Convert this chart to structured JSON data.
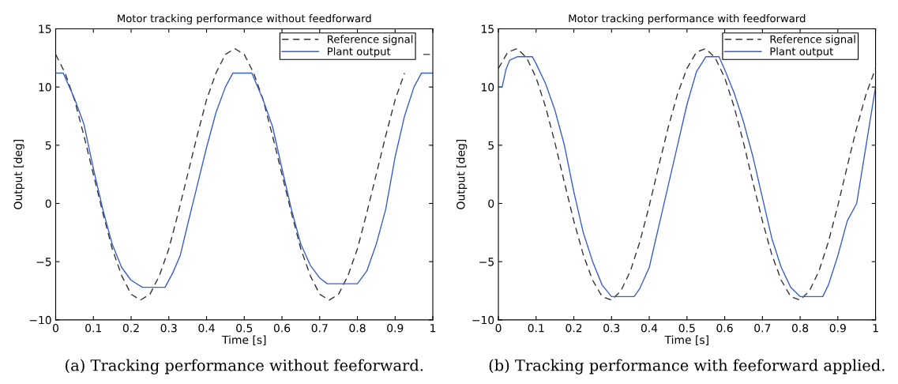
{
  "chart_data": [
    {
      "type": "line",
      "title": "Motor tracking performance without feedforward",
      "xlabel": "Time [s]",
      "ylabel": "Output [deg]",
      "xlim": [
        0,
        1
      ],
      "ylim": [
        -10,
        15
      ],
      "xticks": [
        0,
        0.1,
        0.2,
        0.3,
        0.4,
        0.5,
        0.6,
        0.7,
        0.8,
        0.9,
        1
      ],
      "yticks": [
        -10,
        -5,
        0,
        5,
        10,
        15
      ],
      "grid": false,
      "legend": "top right",
      "annotations": [
        "(a) Tracking performance without feeforward."
      ],
      "series": [
        {
          "name": "Reference signal",
          "color": "#333333",
          "line_style": "dashed",
          "x": [
            0,
            0.025,
            0.05,
            0.075,
            0.1,
            0.125,
            0.15,
            0.175,
            0.2,
            0.225,
            0.25,
            0.275,
            0.3,
            0.325,
            0.35,
            0.375,
            0.4,
            0.425,
            0.45,
            0.475,
            0.5,
            0.525,
            0.55,
            0.575,
            0.6,
            0.625,
            0.65,
            0.675,
            0.7,
            0.725,
            0.75,
            0.775,
            0.8,
            0.825,
            0.85,
            0.875,
            0.9,
            0.925,
            0.95,
            0.975,
            1
          ],
          "values": [
            12.8,
            11.2,
            8.9,
            5.8,
            2.5,
            -0.8,
            -3.9,
            -6.2,
            -7.8,
            -8.3,
            -7.8,
            -6.2,
            -3.9,
            -0.8,
            2.5,
            5.8,
            8.9,
            11.2,
            12.8,
            13.3,
            12.8,
            11.2,
            8.9,
            5.8,
            2.5,
            -0.8,
            -3.9,
            -6.2,
            -7.8,
            -8.3,
            -7.8,
            -6.2,
            -3.9,
            -0.8,
            2.5,
            5.8,
            8.9,
            11.2,
            null,
            12.8,
            12.8
          ]
        },
        {
          "name": "Plant output",
          "color": "#3b5fc8",
          "line_style": "solid",
          "x": [
            0,
            0.02,
            0.05,
            0.075,
            0.1,
            0.125,
            0.15,
            0.175,
            0.2,
            0.23,
            0.29,
            0.31,
            0.33,
            0.35,
            0.375,
            0.4,
            0.425,
            0.45,
            0.47,
            0.52,
            0.55,
            0.575,
            0.6,
            0.625,
            0.65,
            0.675,
            0.7,
            0.72,
            0.8,
            0.825,
            0.85,
            0.875,
            0.9,
            0.925,
            0.95,
            0.97,
            1
          ],
          "values": [
            11.2,
            11.2,
            9.0,
            6.8,
            3.0,
            -0.5,
            -3.5,
            -5.5,
            -6.6,
            -7.2,
            -7.2,
            -6.0,
            -4.5,
            -1.8,
            1.5,
            4.8,
            7.8,
            10.0,
            11.2,
            11.2,
            8.9,
            6.6,
            3.0,
            -0.5,
            -3.5,
            -5.3,
            -6.4,
            -6.9,
            -6.9,
            -5.8,
            -3.5,
            -0.5,
            4.0,
            7.5,
            10.0,
            11.2,
            11.2
          ]
        }
      ]
    },
    {
      "type": "line",
      "title": "Motor tracking performance with feedforward",
      "xlabel": "Time [s]",
      "ylabel": "Output [deg]",
      "xlim": [
        0,
        1
      ],
      "ylim": [
        -10,
        15
      ],
      "xticks": [
        0,
        0.1,
        0.2,
        0.3,
        0.4,
        0.5,
        0.6,
        0.7,
        0.8,
        0.9,
        1
      ],
      "yticks": [
        -10,
        -5,
        0,
        5,
        10,
        15
      ],
      "grid": false,
      "legend": "top right",
      "annotations": [
        "(b) Tracking performance with feeforward applied."
      ],
      "series": [
        {
          "name": "Reference signal",
          "color": "#333333",
          "line_style": "dashed",
          "x": [
            0,
            0.025,
            0.05,
            0.075,
            0.1,
            0.125,
            0.15,
            0.175,
            0.2,
            0.225,
            0.25,
            0.275,
            0.3,
            0.325,
            0.35,
            0.375,
            0.4,
            0.425,
            0.45,
            0.475,
            0.5,
            0.525,
            0.55,
            0.575,
            0.6,
            0.625,
            0.65,
            0.675,
            0.7,
            0.725,
            0.75,
            0.775,
            0.8,
            0.825,
            0.85,
            0.875,
            0.9,
            0.925,
            0.95,
            0.975,
            1
          ],
          "values": [
            11.6,
            13.0,
            13.3,
            12.5,
            10.8,
            8.3,
            5.2,
            1.8,
            -1.5,
            -4.4,
            -6.6,
            -8.0,
            -8.3,
            -7.5,
            -5.8,
            -3.3,
            -0.2,
            3.2,
            6.5,
            9.4,
            11.6,
            13.0,
            13.3,
            12.5,
            10.8,
            8.3,
            5.2,
            1.8,
            -1.5,
            -4.4,
            -6.6,
            -8.0,
            -8.3,
            -7.5,
            -5.8,
            -3.3,
            -0.2,
            3.2,
            6.5,
            9.4,
            11.6
          ]
        },
        {
          "name": "Plant output",
          "color": "#3b5fc8",
          "line_style": "solid",
          "x": [
            0,
            0.01,
            0.02,
            0.03,
            0.05,
            0.09,
            0.1,
            0.125,
            0.15,
            0.175,
            0.2,
            0.225,
            0.25,
            0.275,
            0.3,
            0.36,
            0.375,
            0.4,
            0.425,
            0.45,
            0.475,
            0.5,
            0.525,
            0.55,
            0.585,
            0.6,
            0.625,
            0.65,
            0.675,
            0.7,
            0.725,
            0.75,
            0.775,
            0.8,
            0.86,
            0.875,
            0.9,
            0.925,
            0.95,
            0.975,
            1
          ],
          "values": [
            10.0,
            10.0,
            11.5,
            12.3,
            12.6,
            12.6,
            12.0,
            10.3,
            8.0,
            5.0,
            1.0,
            -2.5,
            -5.0,
            -7.0,
            -8.0,
            -8.0,
            -7.3,
            -5.5,
            -2.0,
            1.5,
            5.0,
            8.5,
            11.3,
            12.6,
            12.6,
            11.5,
            9.5,
            7.0,
            4.0,
            0.5,
            -3.0,
            -5.5,
            -7.2,
            -8.0,
            -8.0,
            -7.0,
            -4.5,
            -1.5,
            0.0,
            5.0,
            10.0
          ]
        }
      ]
    }
  ]
}
